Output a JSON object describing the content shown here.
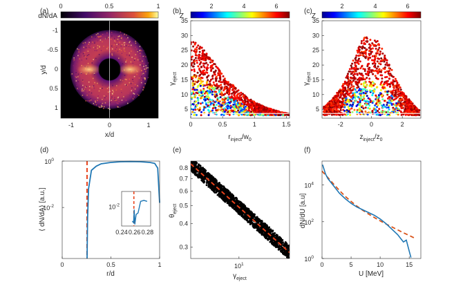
{
  "colors": {
    "line_blue": "#1f77b4",
    "dash_red": "#e8421b",
    "fit_orange": "#d95319",
    "scatter_black": "#000000"
  },
  "chart_data": [
    {
      "id": "a",
      "panel_label": "(a)",
      "type": "heatmap",
      "colorbar_label": "dN/dA",
      "colorbar_ticks": [
        "0",
        "0.5",
        "1"
      ],
      "xlabel": "x/d",
      "ylabel": "y/d",
      "xticks": [
        "-1",
        "0",
        "1"
      ],
      "yticks": [
        "-1",
        "-0.5",
        "0",
        "0.5",
        "1"
      ],
      "xlim": [
        -1.25,
        1.25
      ],
      "ylim": [
        -1.25,
        1.25
      ],
      "ring_inner_radius": 0.26,
      "ring_outer_radius": 1.0
    },
    {
      "id": "b",
      "panel_label": "(b)",
      "type": "scatter",
      "colorbar_label": "Z",
      "colorbar_ticks": [
        "2",
        "4",
        "6"
      ],
      "xlabel_main": "r",
      "xlabel_sub": "inject",
      "xlabel_rest": "/w",
      "xlabel_sub2": "0",
      "ylabel_main": "γ",
      "ylabel_sub": "eject",
      "xticks": [
        "0",
        "0.5",
        "1",
        "1.5"
      ],
      "yticks": [
        "5",
        "10",
        "15",
        "20",
        "25",
        "30",
        "35"
      ],
      "xlim": [
        0,
        1.55
      ],
      "ylim": [
        2,
        35
      ],
      "envelope": {
        "x": [
          0,
          0.2,
          0.4,
          0.6,
          0.8,
          1.0,
          1.2,
          1.4,
          1.55
        ],
        "gamma_max": [
          29,
          26,
          20,
          14.5,
          10.5,
          7.5,
          5.5,
          4.2,
          3.5
        ]
      }
    },
    {
      "id": "c",
      "panel_label": "(c)",
      "type": "scatter",
      "colorbar_label": "Z",
      "colorbar_ticks": [
        "2",
        "4",
        "6"
      ],
      "xlabel_main": "z",
      "xlabel_sub": "inject",
      "xlabel_rest": "/z",
      "xlabel_sub2": "0",
      "ylabel_main": "γ",
      "ylabel_sub": "eject",
      "xticks": [
        "-2",
        "0",
        "2"
      ],
      "yticks": [
        "5",
        "10",
        "15",
        "20",
        "25",
        "30",
        "35"
      ],
      "xlim": [
        -3.2,
        3.2
      ],
      "ylim": [
        2,
        35
      ],
      "envelope": {
        "x": [
          -3,
          -2,
          -1,
          -0.5,
          0,
          0.5,
          1,
          2,
          3
        ],
        "gamma_max": [
          6,
          12,
          24,
          30,
          29,
          28,
          22,
          11,
          5
        ]
      }
    },
    {
      "id": "d",
      "panel_label": "(d)",
      "type": "line",
      "xlabel": "r/d",
      "ylabel": "⟨ dN/dA⟩ [a.u.]",
      "xticks": [
        "0",
        "0.5",
        "1"
      ],
      "yticks_base": "10",
      "yticks_exp": [
        "0",
        "-2"
      ],
      "xlim": [
        0,
        1
      ],
      "ylim_log10": [
        -4.2,
        0
      ],
      "series": [
        {
          "name": "profile",
          "x": [
            0.255,
            0.26,
            0.27,
            0.3,
            0.35,
            0.4,
            0.5,
            0.6,
            0.7,
            0.8,
            0.9,
            0.95,
            0.98,
            1.0
          ],
          "log10_y": [
            -4.2,
            -2.5,
            -1.2,
            -0.4,
            -0.22,
            -0.12,
            -0.06,
            -0.03,
            -0.02,
            -0.03,
            -0.06,
            -0.1,
            -0.3,
            -1.8
          ]
        }
      ],
      "vline_x": 0.255,
      "inset": {
        "xticks": [
          "0.24",
          "0.26",
          "0.28"
        ],
        "ytick_base": "10",
        "ytick_exp": "-2",
        "xlim": [
          0.24,
          0.285
        ],
        "ylim_log10": [
          -2.6,
          -1.55
        ],
        "x": [
          0.2565,
          0.2585,
          0.2595,
          0.2605,
          0.2625,
          0.2655,
          0.2695,
          0.2745,
          0.2795
        ],
        "log10_y": [
          -2.45,
          -2.5,
          -2.1,
          -2.55,
          -2.25,
          -2.2,
          -1.85,
          -1.82,
          -1.85
        ],
        "vline_x": 0.259
      }
    },
    {
      "id": "e",
      "panel_label": "(e)",
      "type": "scatter",
      "xlabel_main": "γ",
      "xlabel_sub": "eject",
      "ylabel_main": "θ",
      "ylabel_sub": "eject",
      "xtick_base": "10",
      "xtick_exp": "1",
      "yticks": [
        "0.3",
        "0.4",
        "0.5",
        "0.6",
        "0.7",
        "0.8"
      ],
      "xlim": [
        3.2,
        33
      ],
      "ylim": [
        0.26,
        0.87
      ],
      "fit_line": {
        "gamma": [
          3.2,
          33
        ],
        "theta": [
          0.84,
          0.28
        ]
      }
    },
    {
      "id": "f",
      "panel_label": "(f)",
      "type": "line",
      "xlabel": "U [MeV]",
      "ylabel": "dN/dU [a.u]",
      "xticks": [
        "0",
        "5",
        "10",
        "15"
      ],
      "yticks_base": "10",
      "yticks_exp": [
        "4",
        "2",
        "0"
      ],
      "xlim": [
        0,
        17
      ],
      "ylim_log10": [
        0,
        5.3
      ],
      "series": [
        {
          "name": "spectrum",
          "x": [
            0.1,
            0.3,
            0.6,
            1,
            1.5,
            2,
            3,
            4,
            5,
            6,
            7,
            8,
            9,
            10,
            11,
            12,
            13,
            13.5,
            14,
            14.5,
            15,
            15.3
          ],
          "log10_y": [
            5.1,
            4.9,
            4.6,
            4.35,
            4.15,
            3.95,
            3.55,
            3.25,
            3.0,
            2.8,
            2.65,
            2.5,
            2.35,
            2.15,
            1.9,
            1.6,
            1.3,
            1.1,
            0.9,
            1.0,
            0.4,
            0.05
          ]
        },
        {
          "name": "fit",
          "x": [
            0,
            1,
            2,
            3,
            4,
            5,
            6,
            7,
            8,
            9,
            10,
            11,
            12,
            13,
            14,
            15,
            16
          ],
          "log10_y": [
            4.75,
            4.4,
            4.05,
            3.7,
            3.38,
            3.1,
            2.85,
            2.62,
            2.42,
            2.23,
            2.05,
            1.88,
            1.72,
            1.56,
            1.4,
            1.25,
            1.1
          ]
        }
      ]
    }
  ]
}
